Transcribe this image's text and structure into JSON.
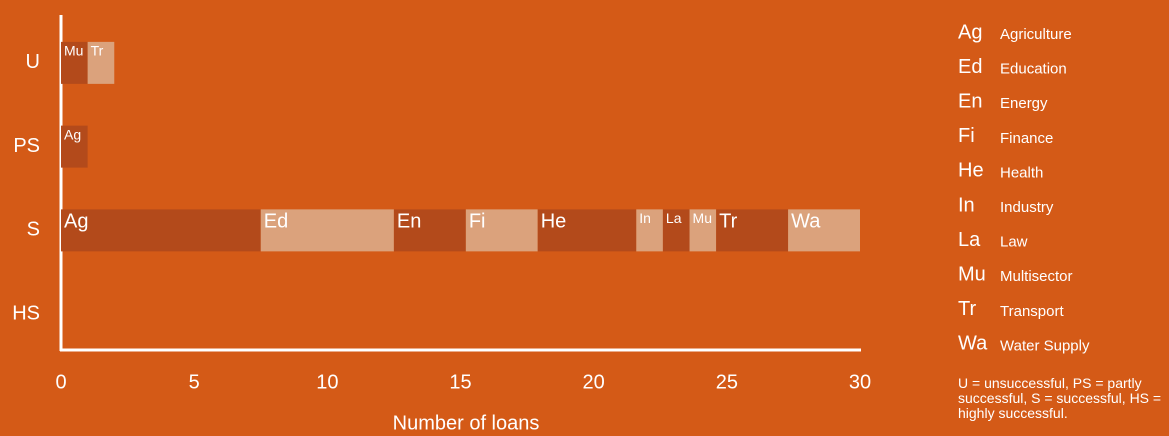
{
  "chart_data": {
    "type": "stacked_barh",
    "categories": [
      "U",
      "PS",
      "S",
      "HS"
    ],
    "series": [
      {
        "name": "Ag",
        "full_name": "Agriculture",
        "values": [
          null,
          1,
          7.5,
          null
        ]
      },
      {
        "name": "Ed",
        "full_name": "Education",
        "values": [
          null,
          null,
          5,
          null
        ]
      },
      {
        "name": "En",
        "full_name": "Energy",
        "values": [
          null,
          null,
          2.7,
          null
        ]
      },
      {
        "name": "Fi",
        "full_name": "Finance",
        "values": [
          null,
          null,
          2.7,
          null
        ]
      },
      {
        "name": "He",
        "full_name": "Health",
        "values": [
          null,
          null,
          3.7,
          null
        ]
      },
      {
        "name": "In",
        "full_name": "Industry",
        "values": [
          null,
          null,
          1,
          null
        ]
      },
      {
        "name": "La",
        "full_name": "Law",
        "values": [
          null,
          null,
          1,
          null
        ]
      },
      {
        "name": "Mu",
        "full_name": "Multisector",
        "values": [
          1,
          null,
          1,
          null
        ]
      },
      {
        "name": "Tr",
        "full_name": "Transport",
        "values": [
          1,
          null,
          2.7,
          null
        ]
      },
      {
        "name": "Wa",
        "full_name": "Water Supply",
        "values": [
          null,
          null,
          2.7,
          null
        ]
      }
    ],
    "segment_colors": [
      "#b34a1b",
      "#dba27c"
    ],
    "xlabel": "Number of loans",
    "xlim": [
      0,
      30
    ],
    "xticks": [
      0,
      5,
      10,
      15,
      20,
      25,
      30
    ],
    "note": "U = unsuccessful, PS = partly successful, S = successful, HS = highly successful."
  }
}
